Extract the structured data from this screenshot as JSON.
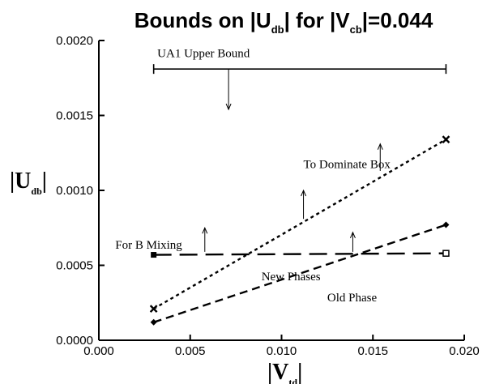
{
  "chart_data": {
    "type": "line",
    "title": {
      "parts": [
        {
          "t": "Bounds on |U",
          "sub": false
        },
        {
          "t": "db",
          "sub": true
        },
        {
          "t": "| for  |V",
          "sub": false
        },
        {
          "t": "cb",
          "sub": true
        },
        {
          "t": "|=0.044",
          "sub": false
        }
      ]
    },
    "xlabel": {
      "main": "|V",
      "sub": "td",
      "end": "|"
    },
    "ylabel": {
      "main": "|U",
      "sub": "db",
      "end": "|"
    },
    "xlim": [
      0.0,
      0.02
    ],
    "ylim": [
      0.0,
      0.002
    ],
    "xticks": [
      {
        "v": 0.0,
        "label": "0.000"
      },
      {
        "v": 0.005,
        "label": "0.005"
      },
      {
        "v": 0.01,
        "label": "0.010"
      },
      {
        "v": 0.015,
        "label": "0.015"
      },
      {
        "v": 0.02,
        "label": "0.020"
      }
    ],
    "yticks": [
      {
        "v": 0.0,
        "label": "0.0000"
      },
      {
        "v": 0.0005,
        "label": "0.0005"
      },
      {
        "v": 0.001,
        "label": "0.0010"
      },
      {
        "v": 0.0015,
        "label": "0.0015"
      },
      {
        "v": 0.002,
        "label": "0.0020"
      }
    ],
    "grid": false,
    "legend": "none",
    "series": [
      {
        "key": "box",
        "x": [
          0.003,
          0.019
        ],
        "y": [
          0.00021,
          0.00134
        ],
        "style": "dotted",
        "marker": "x"
      },
      {
        "key": "old",
        "x": [
          0.003,
          0.019
        ],
        "y": [
          0.00012,
          0.00077
        ],
        "style": "dashed",
        "marker": "diamond"
      },
      {
        "key": "mix",
        "x": [
          0.003,
          0.019
        ],
        "y": [
          0.00057,
          0.00058
        ],
        "style": "longdash",
        "marker": "square-open-end"
      },
      {
        "key": "ua1",
        "x": [
          0.003,
          0.019
        ],
        "y": [
          0.00181,
          0.00181
        ],
        "style": "errorbar",
        "marker": "none"
      }
    ],
    "annotations": [
      {
        "text": "UA1 Upper Bound",
        "x": 0.0032,
        "y": 0.00189
      },
      {
        "text": "To Dominate Box",
        "x": 0.0112,
        "y": 0.00115
      },
      {
        "text": "For B Mixing",
        "x": 0.0009,
        "y": 0.00061
      },
      {
        "text": "New Phases",
        "x": 0.0089,
        "y": 0.0004
      },
      {
        "text": "Old Phase",
        "x": 0.0125,
        "y": 0.00026
      }
    ],
    "arrows": [
      {
        "x": 0.0071,
        "y0": 0.00181,
        "y1": 0.00154,
        "dir": "down"
      },
      {
        "x": 0.0154,
        "y0": 0.00113,
        "y1": 0.00131,
        "dir": "up"
      },
      {
        "x": 0.0112,
        "y0": 0.00081,
        "y1": 0.001,
        "dir": "up"
      },
      {
        "x": 0.0058,
        "y0": 0.00059,
        "y1": 0.00075,
        "dir": "up"
      },
      {
        "x": 0.0139,
        "y0": 0.00059,
        "y1": 0.00072,
        "dir": "up"
      }
    ]
  }
}
